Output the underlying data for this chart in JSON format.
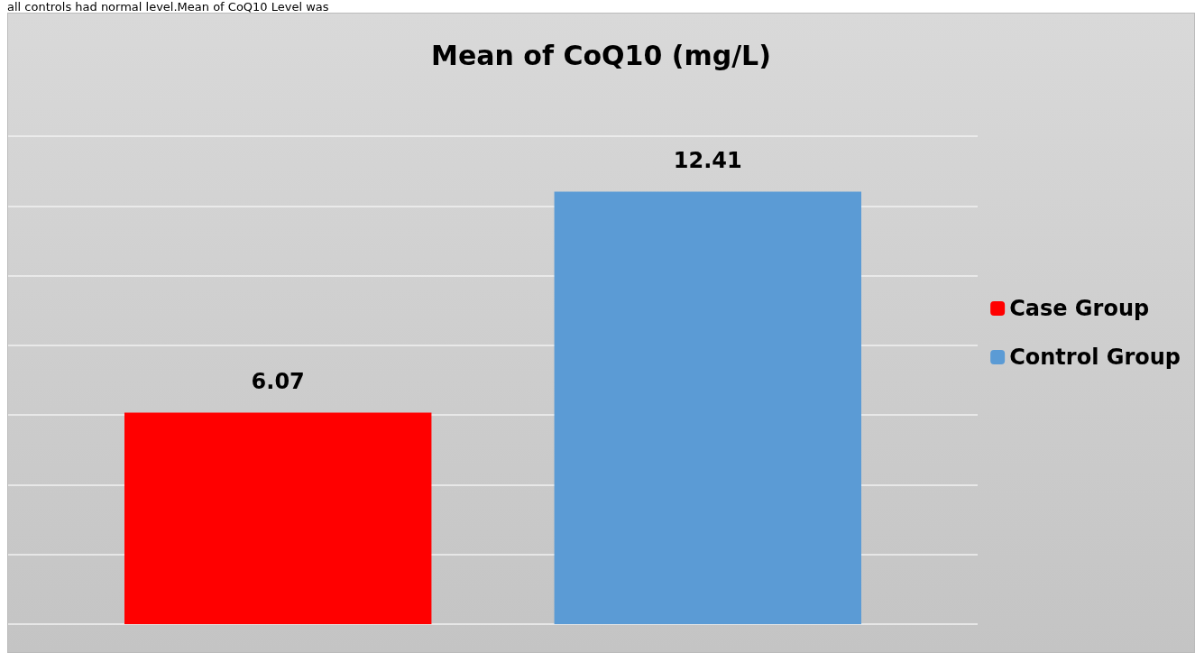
{
  "chart_data": {
    "type": "bar",
    "title": "Mean of CoQ10 (mg/L)",
    "annotations": [
      "all controls had normal level.Mean of CoQ10 Level was"
    ],
    "categories": [
      null
    ],
    "series": [
      {
        "name": "Case Group",
        "color": "#ff0000",
        "values": [
          6.07
        ]
      },
      {
        "name": "Control Group",
        "color": "#5b9bd5",
        "values": [
          12.41
        ]
      }
    ],
    "ylim": [
      0,
      14
    ],
    "yticks": [
      0,
      2,
      4,
      6,
      8,
      10,
      12,
      14
    ],
    "grid": "y",
    "legend": "right",
    "data_labels": true,
    "tick_labels": false
  }
}
